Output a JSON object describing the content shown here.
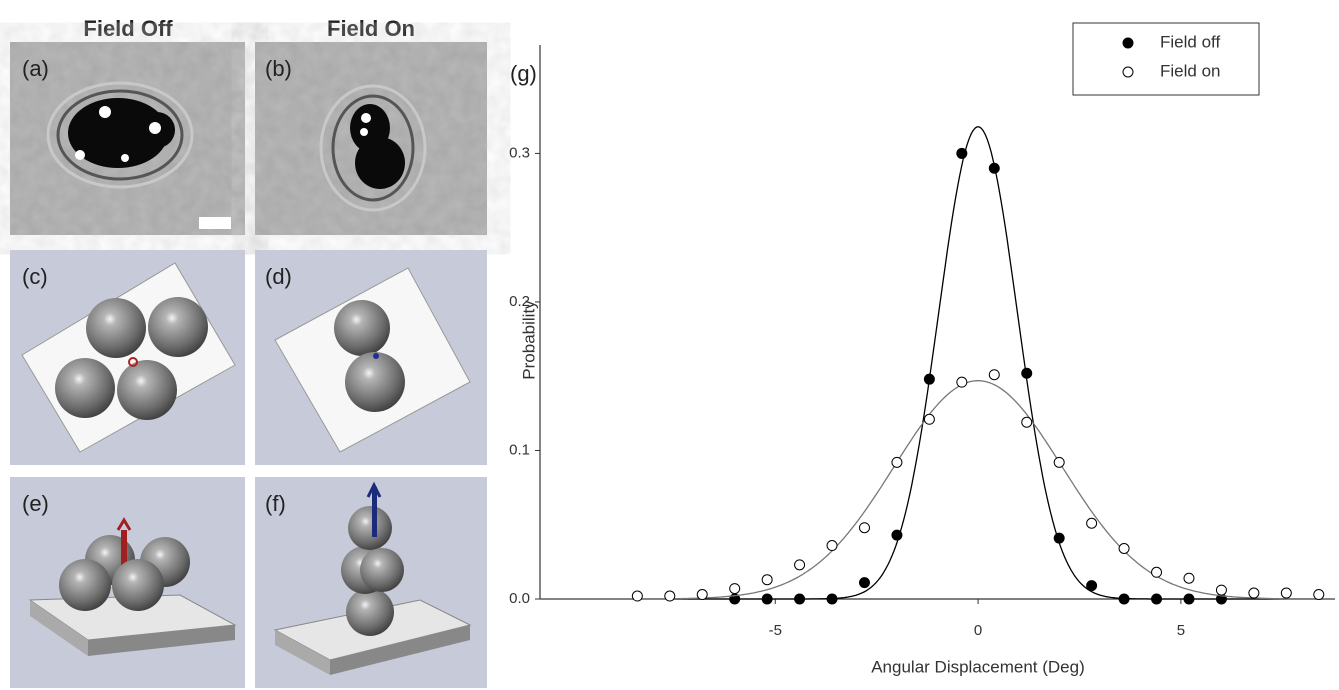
{
  "panels": {
    "headers": [
      "Field Off",
      "Field On"
    ],
    "labels": [
      "(a)",
      "(b)",
      "(c)",
      "(d)",
      "(e)",
      "(f)"
    ]
  },
  "chart_data": {
    "type": "scatter",
    "label": "(g)",
    "xlabel": "Angular Displacement (Deg)",
    "ylabel": "Probability",
    "xlim": [
      -10.8,
      8.8
    ],
    "ylim": [
      0,
      0.373
    ],
    "xticks": [
      -5,
      0,
      5
    ],
    "yticks": [
      {
        "value": 0,
        "label": "0.0"
      },
      0.1,
      0.2,
      0.3
    ],
    "legend": "upper right",
    "series": [
      {
        "name": "Field off",
        "color": "#000000",
        "marker_fill": "#000000",
        "x": [
          -6.0,
          -5.2,
          -4.4,
          -3.6,
          -2.8,
          -2.0,
          -1.2,
          -0.4,
          0.4,
          1.2,
          2.0,
          2.8,
          3.6,
          4.4,
          5.2,
          6.0
        ],
        "values": [
          0,
          0,
          0,
          0,
          0.011,
          0.043,
          0.148,
          0.3,
          0.29,
          0.152,
          0.041,
          0.009,
          0,
          0,
          0,
          0
        ],
        "fit": {
          "peak": 0.318,
          "sigma": 0.97
        }
      },
      {
        "name": "Field on",
        "color": "#777777",
        "marker_fill": "#ffffff",
        "x": [
          -8.4,
          -7.6,
          -6.8,
          -6.0,
          -5.2,
          -4.4,
          -3.6,
          -2.8,
          -2.0,
          -1.2,
          -0.4,
          0.4,
          1.2,
          2.0,
          2.8,
          3.6,
          4.4,
          5.2,
          6.0,
          6.8,
          7.6,
          8.4
        ],
        "values": [
          0.002,
          0.002,
          0.003,
          0.007,
          0.013,
          0.023,
          0.036,
          0.048,
          0.092,
          0.121,
          0.146,
          0.151,
          0.119,
          0.092,
          0.051,
          0.034,
          0.018,
          0.014,
          0.006,
          0.004,
          0.004,
          0.003
        ],
        "fit": {
          "peak": 0.147,
          "sigma": 2.07
        }
      }
    ]
  }
}
